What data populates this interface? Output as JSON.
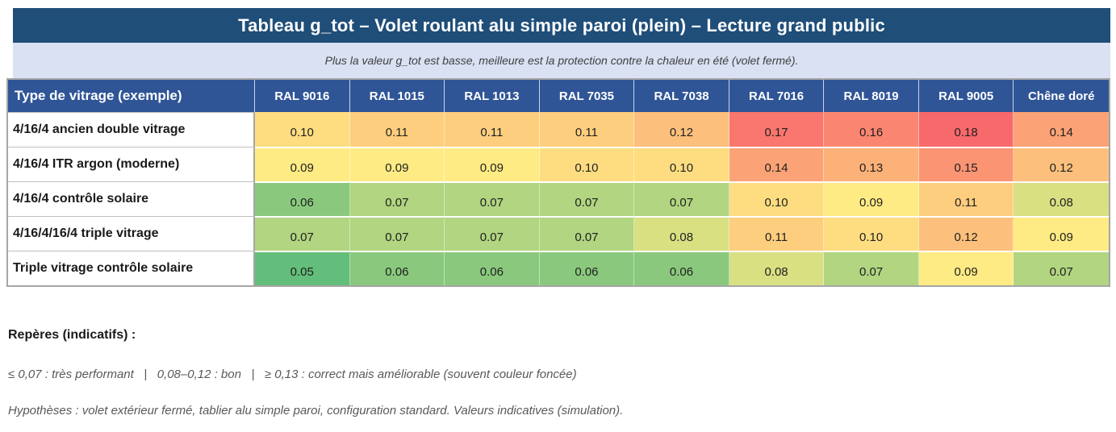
{
  "title": "Tableau g_tot – Volet roulant alu simple paroi (plein) – Lecture grand public",
  "subtitle": "Plus la valeur g_tot est basse, meilleure est la protection contre la chaleur en été (volet fermé).",
  "chart_data": {
    "type": "heatmap",
    "corner_label": "Type de vitrage (exemple)",
    "columns": [
      "RAL 9016",
      "RAL 1015",
      "RAL 1013",
      "RAL 7035",
      "RAL 7038",
      "RAL 7016",
      "RAL 8019",
      "RAL 9005",
      "Chêne doré"
    ],
    "rows": [
      {
        "label": "4/16/4 ancien double vitrage",
        "values": [
          0.1,
          0.11,
          0.11,
          0.11,
          0.12,
          0.17,
          0.16,
          0.18,
          0.14
        ]
      },
      {
        "label": "4/16/4 ITR argon (moderne)",
        "values": [
          0.09,
          0.09,
          0.09,
          0.1,
          0.1,
          0.14,
          0.13,
          0.15,
          0.12
        ]
      },
      {
        "label": "4/16/4 contrôle solaire",
        "values": [
          0.06,
          0.07,
          0.07,
          0.07,
          0.07,
          0.1,
          0.09,
          0.11,
          0.08
        ]
      },
      {
        "label": "4/16/4/16/4 triple vitrage",
        "values": [
          0.07,
          0.07,
          0.07,
          0.07,
          0.08,
          0.11,
          0.1,
          0.12,
          0.09
        ]
      },
      {
        "label": "Triple vitrage contrôle solaire",
        "values": [
          0.05,
          0.06,
          0.06,
          0.06,
          0.06,
          0.08,
          0.07,
          0.09,
          0.07
        ]
      }
    ],
    "value_decimals": 2,
    "color_scale": {
      "min_value": 0.05,
      "mid_value": 0.09,
      "max_value": 0.18,
      "min_color": "#63BE7B",
      "mid_color": "#FFEB84",
      "max_color": "#F8696B"
    }
  },
  "notes": {
    "heading": "Repères (indicatifs) :",
    "legend_line": "≤ 0,07 : très performant   |   0,08–0,12 : bon   |   ≥ 0,13 : correct mais améliorable (souvent couleur foncée)",
    "hypotheses_line": "Hypothèses : volet extérieur fermé, tablier alu simple paroi, configuration standard. Valeurs indicatives (simulation)."
  },
  "colors": {
    "title_bar_bg": "#1F4E79",
    "title_text": "#FFFFFF",
    "subtitle_band_bg": "#D9E1F2",
    "subtitle_text": "#404040",
    "header_bg": "#2F5597",
    "header_text": "#FFFFFF",
    "grid_border": "#A6A6A6",
    "note_text": "#595959"
  }
}
